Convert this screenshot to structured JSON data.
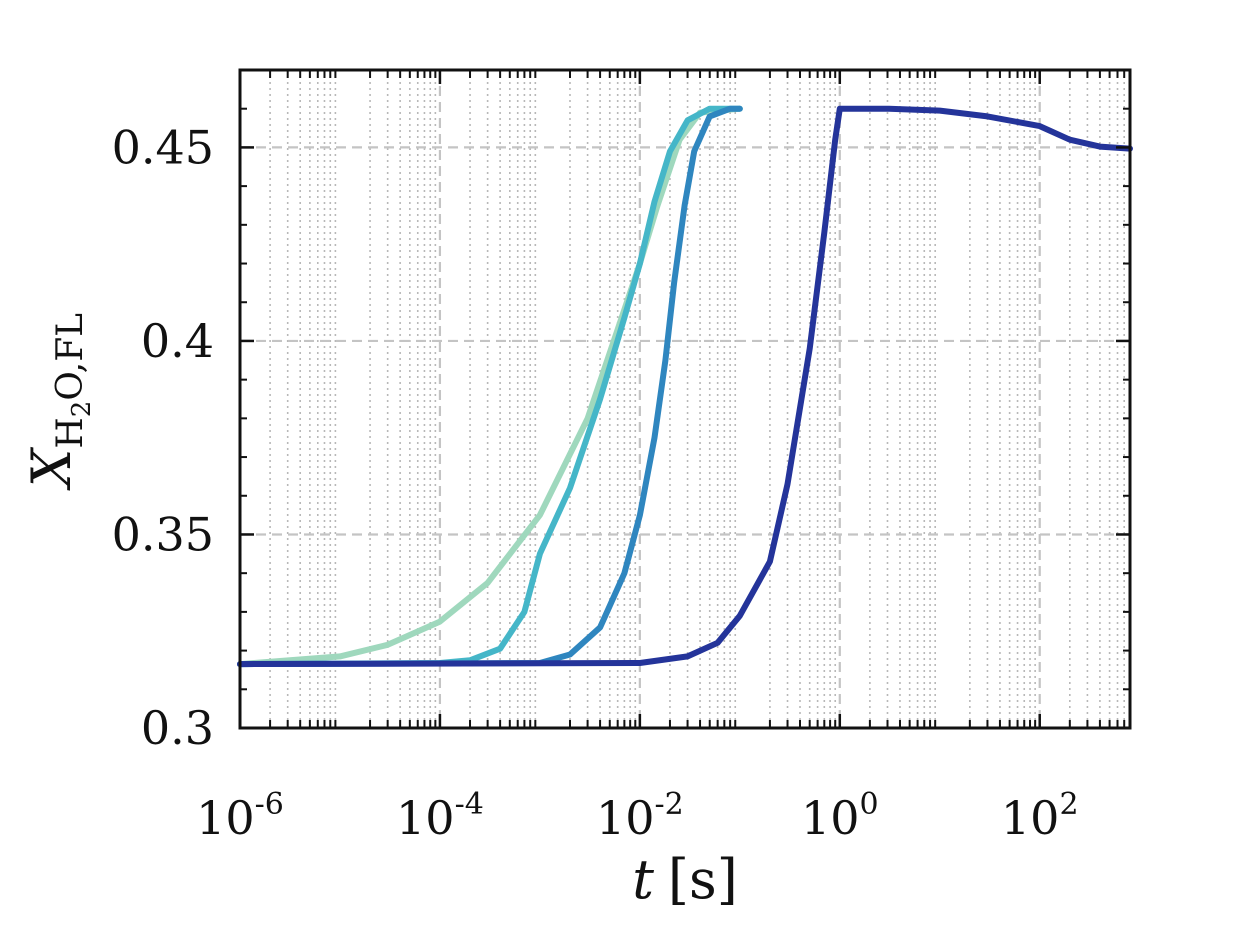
{
  "chart_data": {
    "type": "line",
    "title": "",
    "xscale": "log",
    "xlim": [
      1e-06,
      800
    ],
    "ylim": [
      0.3,
      0.47
    ],
    "grid": true,
    "xlabel": {
      "main": "t",
      "unit": "[s]"
    },
    "ylabel": {
      "main": "X",
      "subscript": "H",
      "subscript2": "2",
      "subscript3": "O,FL"
    },
    "yticks": [
      {
        "value": 0.3,
        "label": "0.3"
      },
      {
        "value": 0.35,
        "label": "0.35"
      },
      {
        "value": 0.4,
        "label": "0.4"
      },
      {
        "value": 0.45,
        "label": "0.45"
      }
    ],
    "xticks": [
      {
        "value": 1e-06,
        "base": "10",
        "exp": "-6"
      },
      {
        "value": 0.0001,
        "base": "10",
        "exp": "-4"
      },
      {
        "value": 0.01,
        "base": "10",
        "exp": "-2"
      },
      {
        "value": 1,
        "base": "10",
        "exp": "0"
      },
      {
        "value": 100,
        "base": "10",
        "exp": "2"
      }
    ],
    "series": [
      {
        "color": "#9fd8bd",
        "points": [
          [
            1e-06,
            0.3165
          ],
          [
            1e-05,
            0.3185
          ],
          [
            3e-05,
            0.3215
          ],
          [
            0.0001,
            0.3275
          ],
          [
            0.0003,
            0.3375
          ],
          [
            0.001,
            0.355
          ],
          [
            0.003,
            0.38
          ],
          [
            0.006,
            0.403
          ],
          [
            0.01,
            0.42
          ],
          [
            0.015,
            0.435
          ],
          [
            0.025,
            0.452
          ],
          [
            0.04,
            0.459
          ],
          [
            0.1,
            0.46
          ]
        ]
      },
      {
        "color": "#45b6c8",
        "points": [
          [
            1e-06,
            0.3165
          ],
          [
            0.0001,
            0.3168
          ],
          [
            0.0002,
            0.3175
          ],
          [
            0.0004,
            0.3205
          ],
          [
            0.0007,
            0.33
          ],
          [
            0.001,
            0.345
          ],
          [
            0.002,
            0.362
          ],
          [
            0.004,
            0.385
          ],
          [
            0.007,
            0.406
          ],
          [
            0.01,
            0.42
          ],
          [
            0.014,
            0.436
          ],
          [
            0.02,
            0.449
          ],
          [
            0.03,
            0.457
          ],
          [
            0.05,
            0.46
          ],
          [
            0.1,
            0.46
          ]
        ]
      },
      {
        "color": "#2f86bf",
        "points": [
          [
            1e-06,
            0.3165
          ],
          [
            0.001,
            0.3168
          ],
          [
            0.002,
            0.319
          ],
          [
            0.004,
            0.326
          ],
          [
            0.007,
            0.34
          ],
          [
            0.01,
            0.355
          ],
          [
            0.014,
            0.375
          ],
          [
            0.018,
            0.395
          ],
          [
            0.022,
            0.415
          ],
          [
            0.028,
            0.435
          ],
          [
            0.035,
            0.449
          ],
          [
            0.05,
            0.458
          ],
          [
            0.08,
            0.46
          ],
          [
            0.1,
            0.46
          ]
        ]
      },
      {
        "color": "#24349a",
        "points": [
          [
            1e-06,
            0.3165
          ],
          [
            0.01,
            0.3168
          ],
          [
            0.03,
            0.3185
          ],
          [
            0.06,
            0.322
          ],
          [
            0.1,
            0.329
          ],
          [
            0.2,
            0.343
          ],
          [
            0.3,
            0.363
          ],
          [
            0.5,
            0.398
          ],
          [
            0.7,
            0.428
          ],
          [
            0.9,
            0.452
          ],
          [
            1,
            0.46
          ],
          [
            3,
            0.46
          ],
          [
            10,
            0.4595
          ],
          [
            30,
            0.458
          ],
          [
            100,
            0.4555
          ],
          [
            200,
            0.452
          ],
          [
            400,
            0.4502
          ],
          [
            800,
            0.4497
          ]
        ]
      }
    ]
  }
}
